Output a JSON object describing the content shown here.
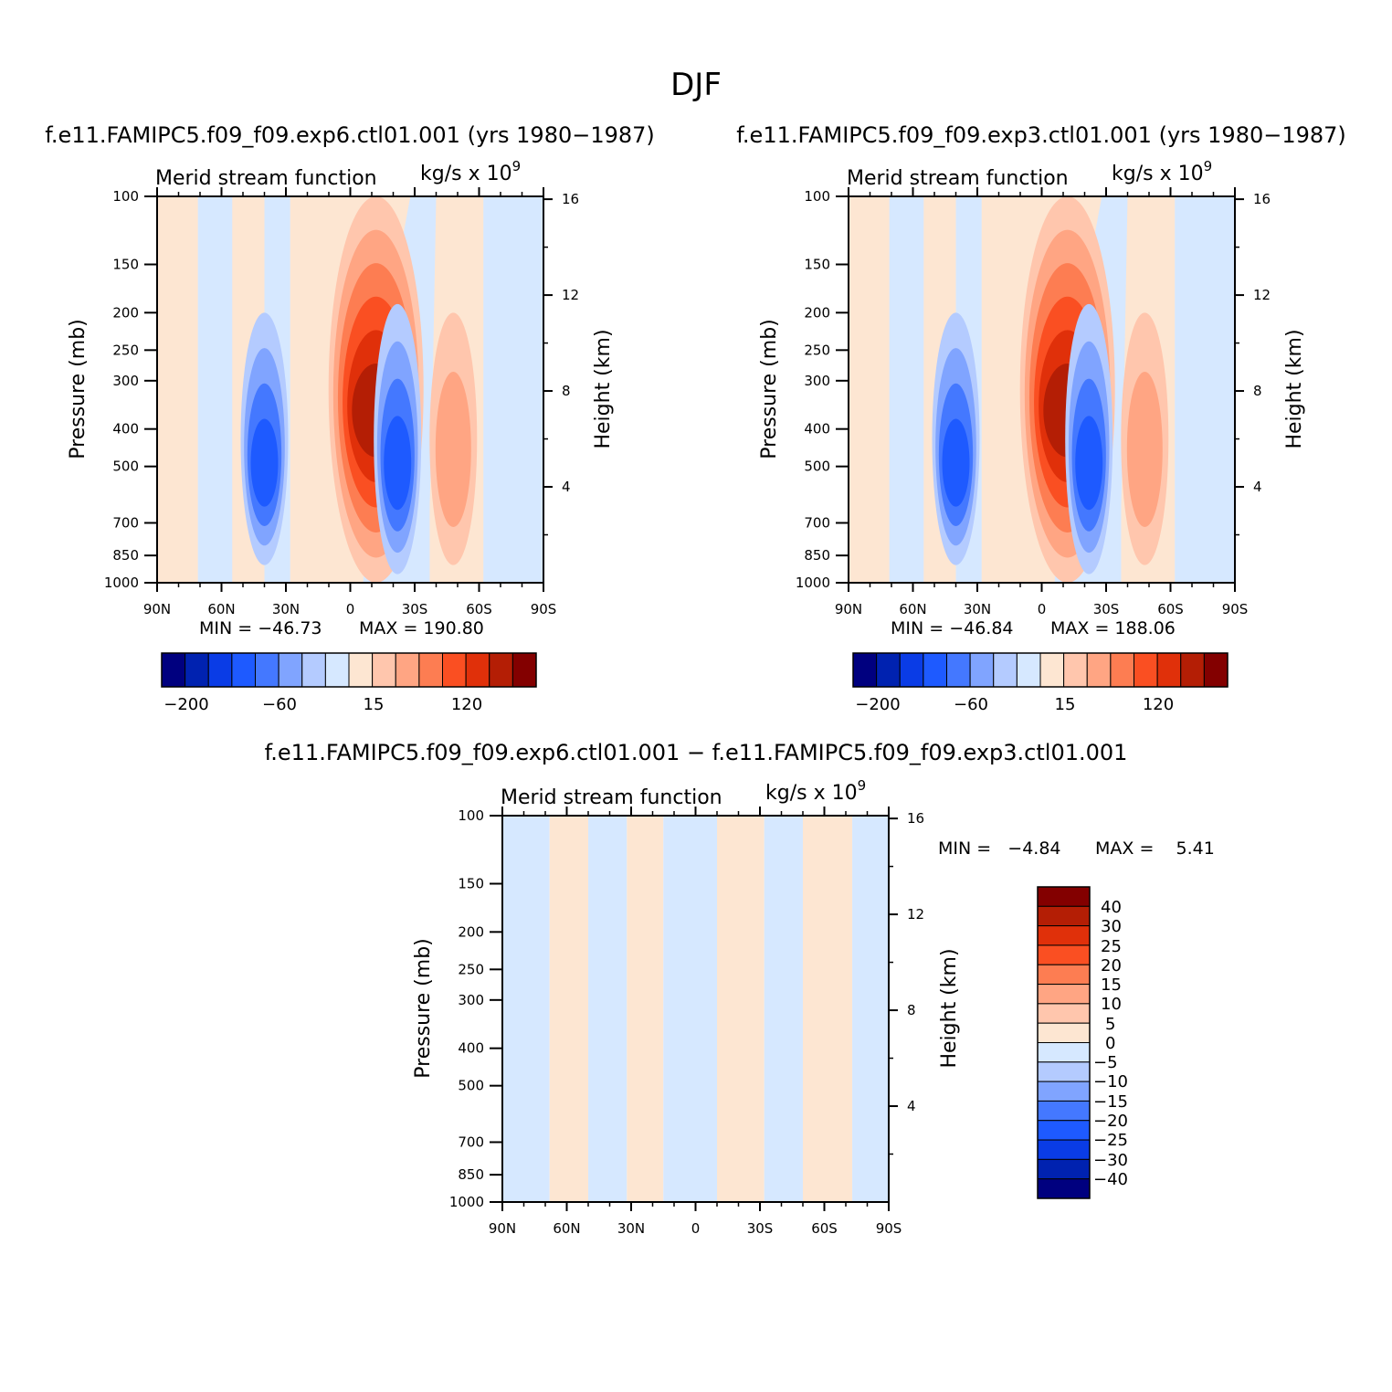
{
  "title": "DJF",
  "colors": {
    "levels": [
      "#00007f",
      "#0022b0",
      "#0a3ce6",
      "#1e5aff",
      "#4478ff",
      "#80a4ff",
      "#b4cbff",
      "#d6e8ff",
      "#fde6d2",
      "#ffc6ad",
      "#ffa583",
      "#fd7d52",
      "#fa4f22",
      "#e0300a",
      "#b41e05",
      "#830000"
    ]
  },
  "panels": [
    {
      "id": "exp6",
      "case_title": "f.e11.FAMIPC5.f09_f09.exp6.ctl01.001 (yrs 1980-1987)",
      "variable": "Merid stream function",
      "units": "kg/s x 10",
      "units_exp": "9",
      "ylabel": "Pressure (mb)",
      "y2label": "Height (km)",
      "min_text": "MIN = -46.73",
      "max_text": "MAX = 190.80",
      "colorbar_labels": [
        "-200",
        "-60",
        "15",
        "120"
      ]
    },
    {
      "id": "exp3",
      "case_title": "f.e11.FAMIPC5.f09_f09.exp3.ctl01.001 (yrs 1980-1987)",
      "variable": "Merid stream function",
      "units": "kg/s x 10",
      "units_exp": "9",
      "ylabel": "Pressure (mb)",
      "y2label": "Height (km)",
      "min_text": "MIN = -46.84",
      "max_text": "MAX = 188.06",
      "colorbar_labels": [
        "-200",
        "-60",
        "15",
        "120"
      ]
    },
    {
      "id": "diff",
      "case_title": "f.e11.FAMIPC5.f09_f09.exp6.ctl01.001 - f.e11.FAMIPC5.f09_f09.exp3.ctl01.001",
      "variable": "Merid stream function",
      "units": "kg/s x 10",
      "units_exp": "9",
      "ylabel": "Pressure (mb)",
      "y2label": "Height (km)",
      "min_text": "MIN =   -4.84",
      "max_text": "MAX =    5.41",
      "colorbar_labels": [
        "40",
        "30",
        "25",
        "20",
        "15",
        "10",
        "5",
        "0",
        "-5",
        "-10",
        "-15",
        "-20",
        "-25",
        "-30",
        "-40"
      ]
    }
  ],
  "chart_data": [
    {
      "type": "heatmap",
      "title": "Merid stream function",
      "subtitle": "f.e11.FAMIPC5.f09_f09.exp6.ctl01.001 (yrs 1980-1987)",
      "units": "kg/s x 10^9",
      "xlabel": "",
      "ylabel": "Pressure (mb)",
      "y2label": "Height (km)",
      "x_ticks": [
        "90N",
        "60N",
        "30N",
        "0",
        "30S",
        "60S",
        "90S"
      ],
      "y_ticks": [
        100,
        150,
        200,
        250,
        300,
        400,
        500,
        700,
        850,
        1000
      ],
      "y2_ticks": [
        16,
        12,
        8,
        4
      ],
      "ylim": [
        1000,
        100
      ],
      "y_scale": "log",
      "min": -46.73,
      "max": 190.8,
      "contour_levels": [
        -200,
        -60,
        15,
        120
      ],
      "features": [
        {
          "lat": -12,
          "sign": "positive",
          "peak_level": 14,
          "p_top": 100,
          "p_bottom": 1000
        },
        {
          "lat": 40,
          "sign": "negative",
          "peak_level": 4,
          "p_top": 200,
          "p_bottom": 900
        },
        {
          "lat": -22,
          "sign": "negative",
          "peak_level": 4,
          "p_top": 190,
          "p_bottom": 950
        },
        {
          "lat": -48,
          "sign": "positive",
          "peak_level": 10,
          "p_top": 200,
          "p_bottom": 900
        }
      ]
    },
    {
      "type": "heatmap",
      "title": "Merid stream function",
      "subtitle": "f.e11.FAMIPC5.f09_f09.exp3.ctl01.001 (yrs 1980-1987)",
      "units": "kg/s x 10^9",
      "xlabel": "",
      "ylabel": "Pressure (mb)",
      "y2label": "Height (km)",
      "x_ticks": [
        "90N",
        "60N",
        "30N",
        "0",
        "30S",
        "60S",
        "90S"
      ],
      "y_ticks": [
        100,
        150,
        200,
        250,
        300,
        400,
        500,
        700,
        850,
        1000
      ],
      "y2_ticks": [
        16,
        12,
        8,
        4
      ],
      "ylim": [
        1000,
        100
      ],
      "y_scale": "log",
      "min": -46.84,
      "max": 188.06,
      "contour_levels": [
        -200,
        -60,
        15,
        120
      ],
      "features": [
        {
          "lat": -12,
          "sign": "positive",
          "peak_level": 14,
          "p_top": 100,
          "p_bottom": 1000
        },
        {
          "lat": 40,
          "sign": "negative",
          "peak_level": 4,
          "p_top": 200,
          "p_bottom": 900
        },
        {
          "lat": -22,
          "sign": "negative",
          "peak_level": 4,
          "p_top": 190,
          "p_bottom": 950
        },
        {
          "lat": -48,
          "sign": "positive",
          "peak_level": 10,
          "p_top": 200,
          "p_bottom": 900
        }
      ]
    },
    {
      "type": "heatmap",
      "title": "Merid stream function",
      "subtitle": "f.e11.FAMIPC5.f09_f09.exp6.ctl01.001 - f.e11.FAMIPC5.f09_f09.exp3.ctl01.001",
      "units": "kg/s x 10^9",
      "xlabel": "",
      "ylabel": "Pressure (mb)",
      "y2label": "Height (km)",
      "x_ticks": [
        "90N",
        "60N",
        "30N",
        "0",
        "30S",
        "60S",
        "90S"
      ],
      "y_ticks": [
        100,
        150,
        200,
        250,
        300,
        400,
        500,
        700,
        850,
        1000
      ],
      "y2_ticks": [
        16,
        12,
        8,
        4
      ],
      "ylim": [
        1000,
        100
      ],
      "y_scale": "log",
      "min": -4.84,
      "max": 5.41,
      "contour_levels": [
        -40,
        -30,
        -25,
        -20,
        -15,
        -10,
        -5,
        0,
        5,
        10,
        15,
        20,
        25,
        30,
        40
      ],
      "bands": [
        {
          "lat_from": 90,
          "lat_to": 68,
          "sign": "negative"
        },
        {
          "lat_from": 68,
          "lat_to": 50,
          "sign": "positive"
        },
        {
          "lat_from": 50,
          "lat_to": 32,
          "sign": "negative"
        },
        {
          "lat_from": 32,
          "lat_to": 15,
          "sign": "positive"
        },
        {
          "lat_from": 15,
          "lat_to": -10,
          "sign": "negative"
        },
        {
          "lat_from": -10,
          "lat_to": -32,
          "sign": "positive"
        },
        {
          "lat_from": -32,
          "lat_to": -50,
          "sign": "negative"
        },
        {
          "lat_from": -50,
          "lat_to": -73,
          "sign": "positive"
        },
        {
          "lat_from": -73,
          "lat_to": -90,
          "sign": "negative"
        }
      ]
    }
  ]
}
